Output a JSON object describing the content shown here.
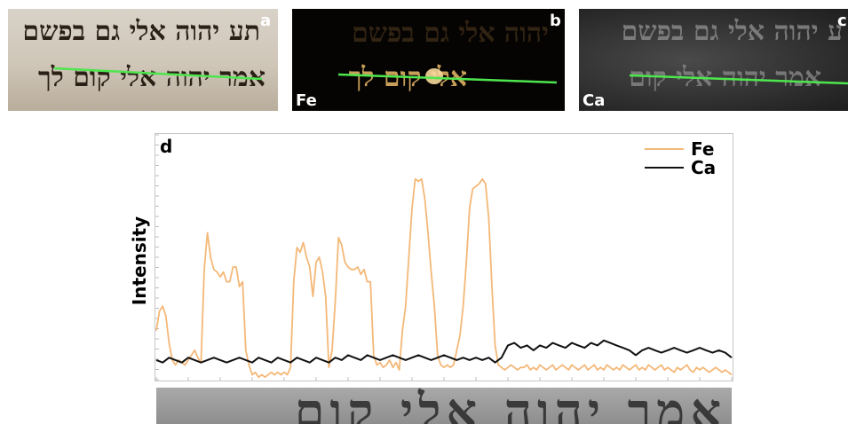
{
  "panels": {
    "a": {
      "label": "a",
      "line1": "תע יהוה אלי גם בפשם",
      "line2": "אמר יהוה אלי קום לך"
    },
    "b": {
      "label": "b",
      "element": "Fe",
      "line1": "יהוה אלי גם בפשם",
      "line2": "אלי קום לך"
    },
    "c": {
      "label": "c",
      "element": "Ca",
      "line1": "ע יהוה אלי גם בפשם",
      "line2": "אמר יהוה אלי קום"
    }
  },
  "strip": {
    "text": "אמר יהוה אלי קום"
  },
  "colors": {
    "Fe": "#f4b878",
    "Ca": "#111111",
    "scan_line": "#4ee64e"
  },
  "chart_data": {
    "type": "line",
    "panel_label": "d",
    "title": "",
    "xlabel": "",
    "ylabel": "Intensity",
    "xlim": [
      0,
      180
    ],
    "ylim": [
      0,
      100
    ],
    "grid": false,
    "legend_position": "top-right",
    "series": [
      {
        "name": "Fe",
        "color": "#f4b878",
        "points": [
          [
            0,
            20
          ],
          [
            1,
            28
          ],
          [
            2,
            30
          ],
          [
            3,
            26
          ],
          [
            4,
            15
          ],
          [
            5,
            8
          ],
          [
            6,
            6
          ],
          [
            7,
            8
          ],
          [
            8,
            7
          ],
          [
            9,
            6
          ],
          [
            10,
            8
          ],
          [
            11,
            10
          ],
          [
            12,
            12
          ],
          [
            13,
            9
          ],
          [
            14,
            7
          ],
          [
            15,
            45
          ],
          [
            16,
            60
          ],
          [
            17,
            50
          ],
          [
            18,
            45
          ],
          [
            19,
            44
          ],
          [
            20,
            42
          ],
          [
            21,
            44
          ],
          [
            22,
            40
          ],
          [
            23,
            40
          ],
          [
            24,
            46
          ],
          [
            25,
            46
          ],
          [
            26,
            38
          ],
          [
            27,
            40
          ],
          [
            28,
            12
          ],
          [
            29,
            6
          ],
          [
            30,
            2
          ],
          [
            31,
            3
          ],
          [
            32,
            1
          ],
          [
            33,
            2
          ],
          [
            34,
            1
          ],
          [
            35,
            2
          ],
          [
            36,
            3
          ],
          [
            37,
            2
          ],
          [
            38,
            3
          ],
          [
            39,
            2
          ],
          [
            40,
            3
          ],
          [
            41,
            2
          ],
          [
            42,
            5
          ],
          [
            43,
            40
          ],
          [
            44,
            54
          ],
          [
            45,
            52
          ],
          [
            46,
            56
          ],
          [
            47,
            50
          ],
          [
            48,
            46
          ],
          [
            49,
            34
          ],
          [
            50,
            48
          ],
          [
            51,
            50
          ],
          [
            52,
            44
          ],
          [
            53,
            34
          ],
          [
            54,
            5
          ],
          [
            55,
            12
          ],
          [
            56,
            32
          ],
          [
            57,
            58
          ],
          [
            58,
            55
          ],
          [
            59,
            48
          ],
          [
            60,
            46
          ],
          [
            61,
            45
          ],
          [
            62,
            45
          ],
          [
            63,
            46
          ],
          [
            64,
            43
          ],
          [
            65,
            45
          ],
          [
            66,
            40
          ],
          [
            67,
            40
          ],
          [
            68,
            10
          ],
          [
            69,
            6
          ],
          [
            70,
            7
          ],
          [
            71,
            5
          ],
          [
            72,
            6
          ],
          [
            73,
            8
          ],
          [
            74,
            5
          ],
          [
            75,
            7
          ],
          [
            76,
            4
          ],
          [
            77,
            20
          ],
          [
            78,
            30
          ],
          [
            79,
            50
          ],
          [
            80,
            70
          ],
          [
            81,
            82
          ],
          [
            82,
            81
          ],
          [
            83,
            82
          ],
          [
            84,
            74
          ],
          [
            85,
            60
          ],
          [
            86,
            44
          ],
          [
            87,
            30
          ],
          [
            88,
            10
          ],
          [
            89,
            6
          ],
          [
            90,
            5
          ],
          [
            91,
            6
          ],
          [
            92,
            5
          ],
          [
            93,
            6
          ],
          [
            94,
            12
          ],
          [
            95,
            18
          ],
          [
            96,
            30
          ],
          [
            97,
            48
          ],
          [
            98,
            70
          ],
          [
            99,
            78
          ],
          [
            100,
            79
          ],
          [
            101,
            80
          ],
          [
            102,
            82
          ],
          [
            103,
            80
          ],
          [
            104,
            66
          ],
          [
            105,
            38
          ],
          [
            106,
            14
          ],
          [
            107,
            6
          ],
          [
            108,
            5
          ],
          [
            109,
            4
          ],
          [
            110,
            5
          ],
          [
            111,
            6
          ],
          [
            112,
            5
          ],
          [
            113,
            4
          ],
          [
            114,
            5
          ],
          [
            115,
            5
          ],
          [
            116,
            6
          ],
          [
            117,
            4
          ],
          [
            118,
            5
          ],
          [
            119,
            4
          ],
          [
            120,
            6
          ],
          [
            121,
            5
          ],
          [
            122,
            4
          ],
          [
            123,
            5
          ],
          [
            124,
            6
          ],
          [
            125,
            4
          ],
          [
            126,
            5
          ],
          [
            127,
            6
          ],
          [
            128,
            5
          ],
          [
            129,
            4
          ],
          [
            130,
            6
          ],
          [
            131,
            5
          ],
          [
            132,
            4
          ],
          [
            133,
            5
          ],
          [
            134,
            6
          ],
          [
            135,
            4
          ],
          [
            136,
            5
          ],
          [
            137,
            6
          ],
          [
            138,
            4
          ],
          [
            139,
            5
          ],
          [
            140,
            4
          ],
          [
            141,
            6
          ],
          [
            142,
            5
          ],
          [
            143,
            4
          ],
          [
            144,
            5
          ],
          [
            145,
            4
          ],
          [
            146,
            6
          ],
          [
            147,
            5
          ],
          [
            148,
            4
          ],
          [
            149,
            5
          ],
          [
            150,
            6
          ],
          [
            151,
            4
          ],
          [
            152,
            5
          ],
          [
            153,
            4
          ],
          [
            154,
            6
          ],
          [
            155,
            5
          ],
          [
            156,
            4
          ],
          [
            157,
            5
          ],
          [
            158,
            6
          ],
          [
            159,
            4
          ],
          [
            160,
            5
          ],
          [
            161,
            4
          ],
          [
            162,
            3
          ],
          [
            163,
            5
          ],
          [
            164,
            4
          ],
          [
            165,
            5
          ],
          [
            166,
            6
          ],
          [
            167,
            4
          ],
          [
            168,
            3
          ],
          [
            169,
            5
          ],
          [
            170,
            4
          ],
          [
            171,
            5
          ],
          [
            172,
            4
          ],
          [
            173,
            3
          ],
          [
            174,
            4
          ],
          [
            175,
            5
          ],
          [
            176,
            4
          ],
          [
            177,
            3
          ],
          [
            178,
            4
          ],
          [
            179,
            3
          ],
          [
            180,
            2
          ]
        ]
      },
      {
        "name": "Ca",
        "color": "#111111",
        "points": [
          [
            0,
            8
          ],
          [
            2,
            7
          ],
          [
            4,
            9
          ],
          [
            6,
            8
          ],
          [
            8,
            7
          ],
          [
            10,
            9
          ],
          [
            12,
            8
          ],
          [
            14,
            7
          ],
          [
            16,
            8
          ],
          [
            18,
            9
          ],
          [
            20,
            8
          ],
          [
            22,
            7
          ],
          [
            24,
            8
          ],
          [
            26,
            9
          ],
          [
            28,
            8
          ],
          [
            30,
            7
          ],
          [
            32,
            9
          ],
          [
            34,
            8
          ],
          [
            36,
            7
          ],
          [
            38,
            9
          ],
          [
            40,
            8
          ],
          [
            42,
            7
          ],
          [
            44,
            9
          ],
          [
            46,
            8
          ],
          [
            48,
            7
          ],
          [
            50,
            9
          ],
          [
            52,
            8
          ],
          [
            54,
            7
          ],
          [
            56,
            9
          ],
          [
            58,
            8
          ],
          [
            60,
            10
          ],
          [
            62,
            9
          ],
          [
            64,
            8
          ],
          [
            66,
            10
          ],
          [
            68,
            9
          ],
          [
            70,
            8
          ],
          [
            72,
            9
          ],
          [
            74,
            10
          ],
          [
            76,
            9
          ],
          [
            78,
            8
          ],
          [
            80,
            9
          ],
          [
            82,
            10
          ],
          [
            84,
            9
          ],
          [
            86,
            8
          ],
          [
            88,
            9
          ],
          [
            90,
            10
          ],
          [
            92,
            9
          ],
          [
            94,
            8
          ],
          [
            96,
            9
          ],
          [
            98,
            8
          ],
          [
            100,
            9
          ],
          [
            102,
            8
          ],
          [
            104,
            9
          ],
          [
            106,
            7
          ],
          [
            108,
            9
          ],
          [
            110,
            14
          ],
          [
            112,
            15
          ],
          [
            114,
            13
          ],
          [
            116,
            14
          ],
          [
            118,
            12
          ],
          [
            120,
            14
          ],
          [
            122,
            13
          ],
          [
            124,
            15
          ],
          [
            126,
            14
          ],
          [
            128,
            13
          ],
          [
            130,
            15
          ],
          [
            132,
            14
          ],
          [
            134,
            13
          ],
          [
            136,
            15
          ],
          [
            138,
            14
          ],
          [
            140,
            16
          ],
          [
            142,
            15
          ],
          [
            144,
            14
          ],
          [
            146,
            13
          ],
          [
            148,
            12
          ],
          [
            150,
            10
          ],
          [
            152,
            12
          ],
          [
            154,
            13
          ],
          [
            156,
            12
          ],
          [
            158,
            11
          ],
          [
            160,
            12
          ],
          [
            162,
            13
          ],
          [
            164,
            12
          ],
          [
            166,
            11
          ],
          [
            168,
            12
          ],
          [
            170,
            13
          ],
          [
            172,
            12
          ],
          [
            174,
            11
          ],
          [
            176,
            12
          ],
          [
            178,
            11
          ],
          [
            180,
            9
          ]
        ]
      }
    ]
  }
}
